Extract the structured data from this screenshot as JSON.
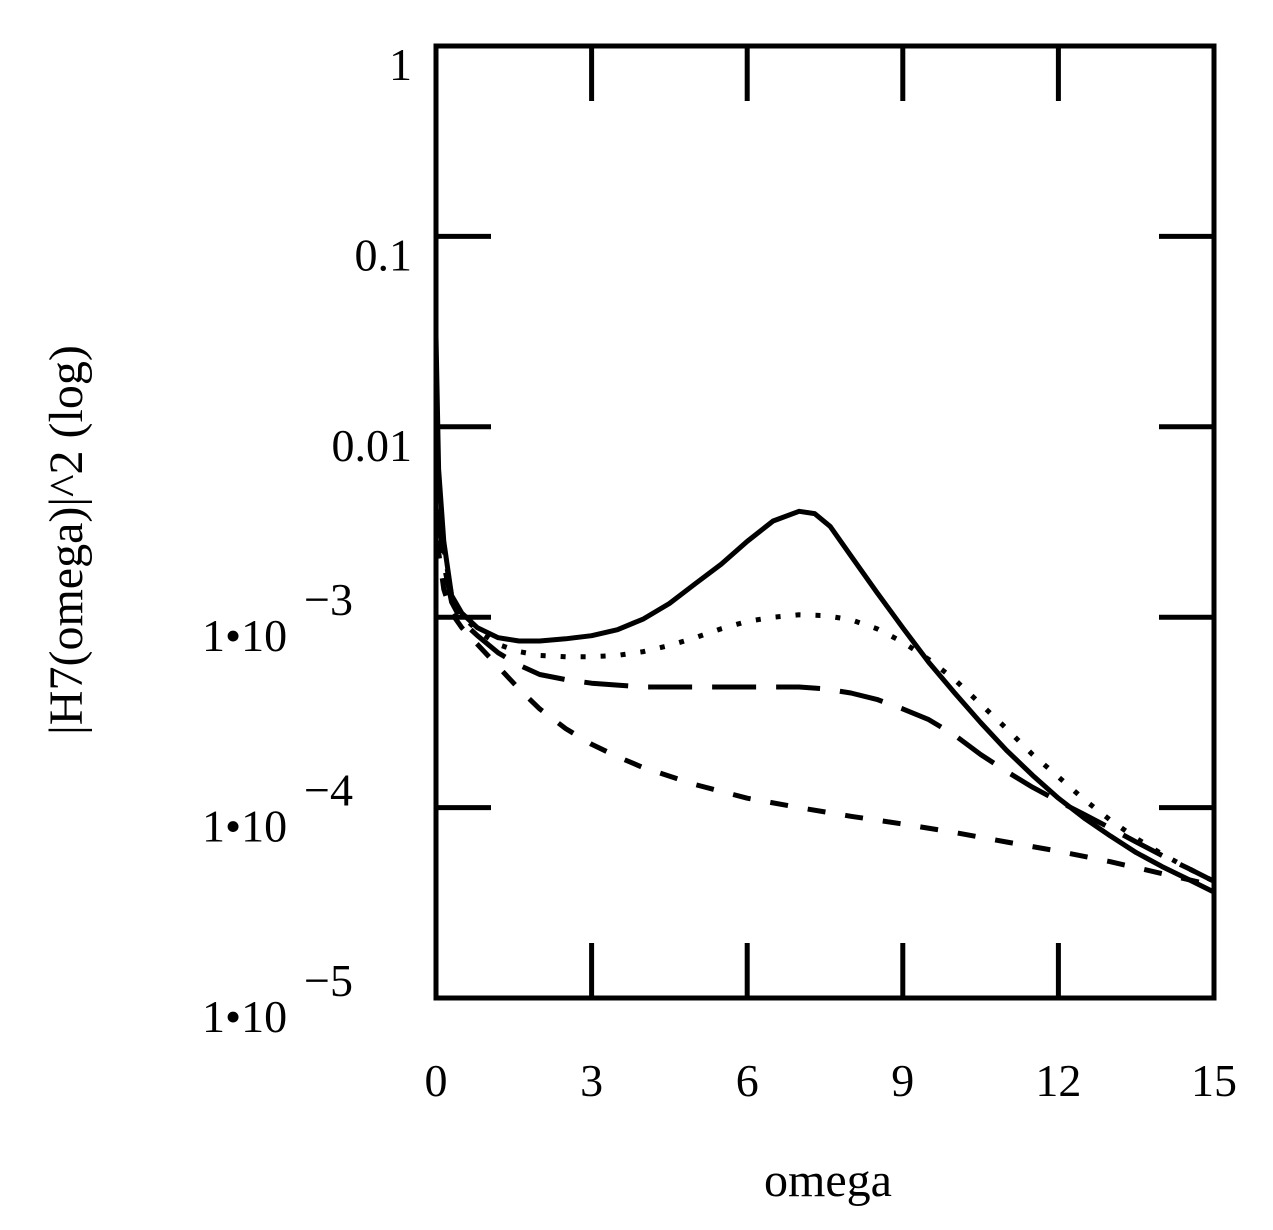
{
  "chart_data": {
    "type": "line",
    "title": "",
    "xlabel": "omega",
    "ylabel": "|H7(omega)|^2 (log)",
    "xlim": [
      0,
      15
    ],
    "ylim": [
      1e-05,
      1
    ],
    "yscale": "log",
    "grid": false,
    "x_ticks": [
      {
        "value": 0,
        "label": "0"
      },
      {
        "value": 3,
        "label": "3"
      },
      {
        "value": 6,
        "label": "6"
      },
      {
        "value": 9,
        "label": "9"
      },
      {
        "value": 12,
        "label": "12"
      },
      {
        "value": 15,
        "label": "15"
      }
    ],
    "y_ticks": [
      {
        "value": 1,
        "label": "1",
        "mantissa": "",
        "exponent": ""
      },
      {
        "value": 0.1,
        "label": "0.1",
        "mantissa": "",
        "exponent": ""
      },
      {
        "value": 0.01,
        "label": "0.01",
        "mantissa": "",
        "exponent": ""
      },
      {
        "value": 0.001,
        "label": "",
        "mantissa": "1•10",
        "exponent": "−3"
      },
      {
        "value": 0.0001,
        "label": "",
        "mantissa": "1•10",
        "exponent": "−4"
      },
      {
        "value": 1e-05,
        "label": "",
        "mantissa": "1•10",
        "exponent": "−5"
      }
    ],
    "series": [
      {
        "name": "solid",
        "dash": "solid",
        "x": [
          0.0,
          0.05,
          0.15,
          0.3,
          0.5,
          0.8,
          1.2,
          1.6,
          2.0,
          2.5,
          3.0,
          3.5,
          4.0,
          4.5,
          5.0,
          5.5,
          6.0,
          6.5,
          7.0,
          7.3,
          7.6,
          8.0,
          8.5,
          9.0,
          9.5,
          10.0,
          10.5,
          11.0,
          11.5,
          12.0,
          12.5,
          13.0,
          13.5,
          14.0,
          14.5,
          15.0
        ],
        "y": [
          0.03,
          0.006,
          0.0025,
          0.0013,
          0.00105,
          0.00088,
          0.00078,
          0.00075,
          0.00075,
          0.00077,
          0.0008,
          0.00086,
          0.00098,
          0.00118,
          0.0015,
          0.0019,
          0.0025,
          0.0032,
          0.0036,
          0.0035,
          0.003,
          0.0021,
          0.00135,
          0.00088,
          0.00058,
          0.0004,
          0.00028,
          0.0002,
          0.000148,
          0.000112,
          8.8e-05,
          7.1e-05,
          5.8e-05,
          4.9e-05,
          4.2e-05,
          3.6e-05
        ]
      },
      {
        "name": "dotted",
        "dash": "dotted",
        "x": [
          0.0,
          0.05,
          0.15,
          0.3,
          0.5,
          0.8,
          1.2,
          1.6,
          2.0,
          2.5,
          3.0,
          3.5,
          4.0,
          4.5,
          5.0,
          5.5,
          6.0,
          6.5,
          7.0,
          7.5,
          8.0,
          8.5,
          9.0,
          9.5,
          10.0,
          10.5,
          11.0,
          11.5,
          12.0,
          12.5,
          13.0,
          13.5,
          14.0,
          14.5,
          15.0
        ],
        "y": [
          0.02,
          0.005,
          0.0023,
          0.0013,
          0.00102,
          0.00085,
          0.00072,
          0.00066,
          0.00063,
          0.00062,
          0.00062,
          0.00063,
          0.00066,
          0.00071,
          0.00078,
          0.00087,
          0.00095,
          0.001,
          0.00103,
          0.00102,
          0.00097,
          0.00087,
          0.00074,
          0.0006,
          0.00047,
          0.00035,
          0.00026,
          0.00019,
          0.000145,
          0.00011,
          8.6e-05,
          6.9e-05,
          5.7e-05,
          4.8e-05,
          4.1e-05
        ]
      },
      {
        "name": "long-dash",
        "dash": "long-dash",
        "x": [
          0.0,
          0.05,
          0.15,
          0.3,
          0.5,
          0.8,
          1.2,
          1.6,
          2.0,
          2.5,
          3.0,
          3.5,
          4.0,
          4.5,
          5.0,
          5.5,
          6.0,
          6.5,
          7.0,
          7.5,
          8.0,
          8.5,
          9.0,
          9.5,
          10.0,
          10.5,
          11.0,
          11.5,
          12.0,
          12.5,
          13.0,
          13.5,
          14.0,
          14.5,
          15.0
        ],
        "y": [
          0.008,
          0.0035,
          0.0019,
          0.0012,
          0.00095,
          0.0008,
          0.00065,
          0.00056,
          0.0005,
          0.00047,
          0.00045,
          0.00044,
          0.00043,
          0.00043,
          0.00043,
          0.00043,
          0.00043,
          0.00043,
          0.00043,
          0.00042,
          0.0004,
          0.00037,
          0.00033,
          0.00029,
          0.00024,
          0.00019,
          0.000155,
          0.000128,
          0.000108,
          9.2e-05,
          7.8e-05,
          6.6e-05,
          5.6e-05,
          4.8e-05,
          4.1e-05
        ]
      },
      {
        "name": "short-dash",
        "dash": "short-dash",
        "x": [
          0.0,
          0.05,
          0.15,
          0.3,
          0.5,
          0.8,
          1.2,
          1.6,
          2.0,
          2.5,
          3.0,
          3.5,
          4.0,
          5.0,
          6.0,
          7.0,
          8.0,
          9.0,
          10.0,
          11.0,
          12.0,
          13.0,
          14.0,
          15.0
        ],
        "y": [
          0.004,
          0.0022,
          0.0014,
          0.00105,
          0.00088,
          0.00072,
          0.00055,
          0.00042,
          0.00033,
          0.00026,
          0.000215,
          0.000185,
          0.000162,
          0.000132,
          0.000112,
          0.0001,
          9e-05,
          8.2e-05,
          7.4e-05,
          6.6e-05,
          5.9e-05,
          5.2e-05,
          4.5e-05,
          3.9e-05
        ]
      }
    ]
  }
}
